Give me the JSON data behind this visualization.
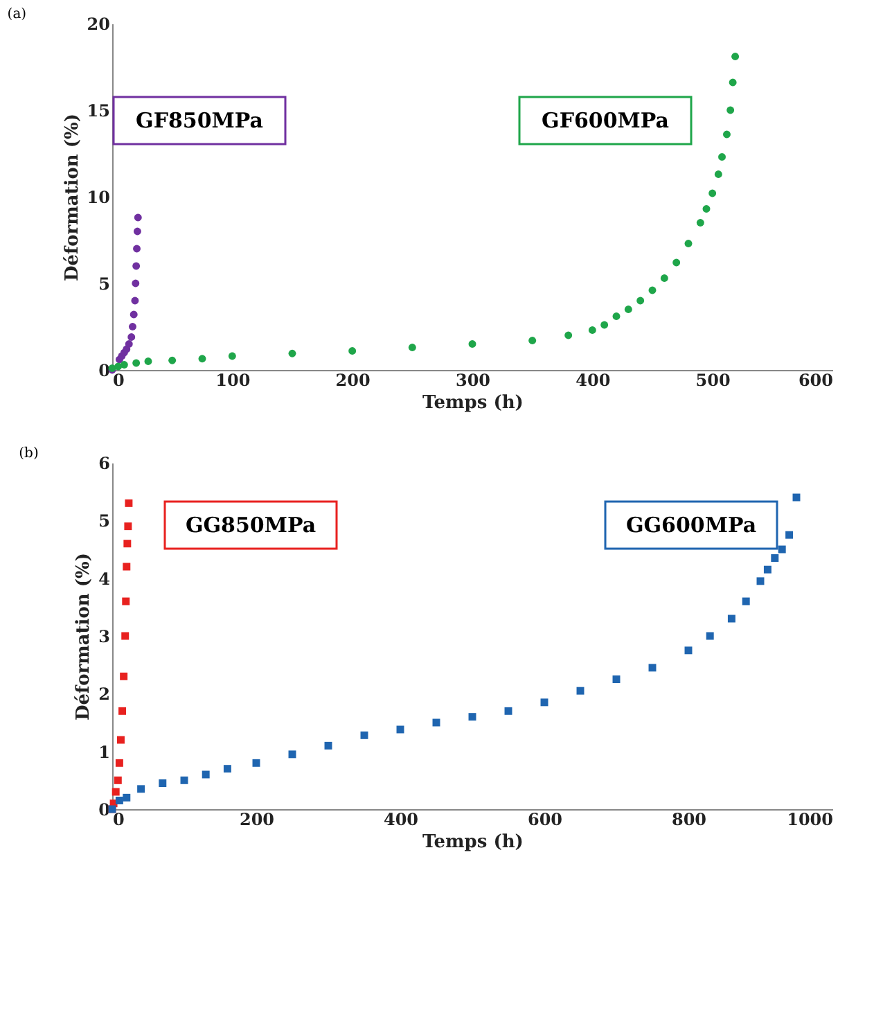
{
  "chart_data": [
    {
      "type": "scatter",
      "title": "(a)",
      "xlabel": "Temps (h)",
      "ylabel": "Déformation (%)",
      "xlim": [
        0,
        600
      ],
      "xticks": [
        0,
        100,
        200,
        300,
        400,
        500,
        600
      ],
      "ylim": [
        0,
        20
      ],
      "yticks": [
        0,
        5,
        10,
        15,
        20
      ],
      "grid": false,
      "legend": false,
      "marker": "circle",
      "series": [
        {
          "name": "GF850MPa",
          "color": "#7030a0",
          "x": [
            0,
            2,
            4,
            6,
            8,
            10,
            12,
            14,
            16,
            17,
            18,
            19,
            19.5,
            20,
            20.5,
            21,
            21.5
          ],
          "values": [
            0,
            null,
            null,
            0.6,
            0.8,
            1.0,
            1.2,
            1.5,
            1.9,
            2.5,
            3.2,
            4.0,
            5,
            6,
            7,
            8,
            8.8
          ]
        },
        {
          "name": "GF600MPa",
          "color": "#1fa64a",
          "x": [
            0,
            5,
            10,
            20,
            30,
            50,
            75,
            100,
            150,
            200,
            250,
            300,
            350,
            380,
            400,
            410,
            420,
            430,
            440,
            450,
            460,
            470,
            480,
            490,
            495,
            500,
            505,
            508,
            512,
            515,
            517,
            519
          ],
          "values": [
            0.1,
            0.2,
            0.3,
            0.4,
            0.5,
            0.55,
            0.65,
            0.8,
            0.95,
            1.1,
            1.3,
            1.5,
            1.7,
            2.0,
            2.3,
            2.6,
            3.1,
            3.5,
            4.0,
            4.6,
            5.3,
            6.2,
            7.3,
            8.5,
            9.3,
            10.2,
            11.3,
            12.3,
            13.6,
            15.0,
            16.6,
            18.1
          ]
        }
      ]
    },
    {
      "type": "scatter",
      "title": "(b)",
      "xlabel": "Temps (h)",
      "ylabel": "Déformation (%)",
      "xlim": [
        0,
        1000
      ],
      "xticks": [
        0,
        200,
        400,
        600,
        800,
        1000
      ],
      "ylim": [
        0,
        6
      ],
      "yticks": [
        0,
        1,
        2,
        3,
        4,
        5,
        6
      ],
      "grid": false,
      "legend": false,
      "marker": "square",
      "series": [
        {
          "name": "GG850MPa",
          "color": "#e8211f",
          "x": [
            0,
            2,
            5,
            8,
            10,
            12,
            14,
            16,
            18,
            19,
            20,
            21,
            22,
            23
          ],
          "values": [
            0,
            0.1,
            0.3,
            0.5,
            0.8,
            1.2,
            1.7,
            2.3,
            3.0,
            3.6,
            4.2,
            4.6,
            4.9,
            5.3
          ]
        },
        {
          "name": "GG600MPa",
          "color": "#1f65b0",
          "x": [
            0,
            10,
            20,
            40,
            70,
            100,
            130,
            160,
            200,
            250,
            300,
            350,
            400,
            450,
            500,
            550,
            600,
            650,
            700,
            750,
            800,
            830,
            860,
            880,
            900,
            910,
            920,
            930,
            940,
            950
          ],
          "values": [
            0,
            0.15,
            0.2,
            0.35,
            0.45,
            0.5,
            0.6,
            0.7,
            0.8,
            0.95,
            1.1,
            1.28,
            1.38,
            1.5,
            1.6,
            1.7,
            1.85,
            2.05,
            2.25,
            2.45,
            2.75,
            3.0,
            3.3,
            3.6,
            3.95,
            4.15,
            4.35,
            4.5,
            4.75,
            5.4
          ]
        }
      ]
    }
  ]
}
